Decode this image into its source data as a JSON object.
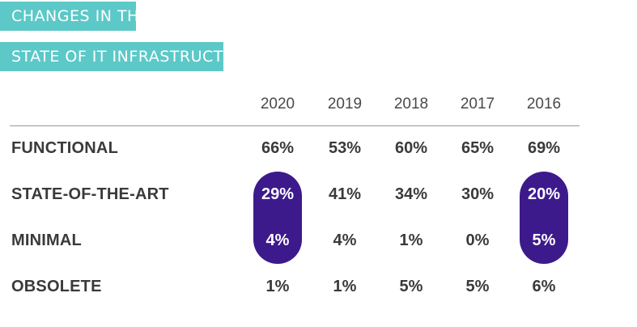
{
  "title": {
    "line1": "CHANGES IN THE",
    "line2": "STATE OF IT INFRASTRUCTURE"
  },
  "colors": {
    "title_band": "#5cc8c8",
    "highlight": "#3d1a8c",
    "text": "#3a3a3a",
    "rule": "#999999"
  },
  "chart_data": {
    "type": "table",
    "title": "CHANGES IN THE STATE OF IT INFRASTRUCTURE",
    "columns": [
      "2020",
      "2019",
      "2018",
      "2017",
      "2016"
    ],
    "rows": [
      {
        "label": "FUNCTIONAL",
        "values": [
          "66%",
          "53%",
          "60%",
          "65%",
          "69%"
        ]
      },
      {
        "label": "STATE-OF-THE-ART",
        "values": [
          "29%",
          "41%",
          "34%",
          "30%",
          "20%"
        ]
      },
      {
        "label": "MINIMAL",
        "values": [
          "4%",
          "4%",
          "1%",
          "0%",
          "5%"
        ]
      },
      {
        "label": "OBSOLETE",
        "values": [
          "1%",
          "1%",
          "5%",
          "5%",
          "6%"
        ]
      }
    ],
    "highlighted_columns": [
      "2020",
      "2016"
    ],
    "highlighted_rows": [
      "STATE-OF-THE-ART",
      "MINIMAL"
    ]
  }
}
